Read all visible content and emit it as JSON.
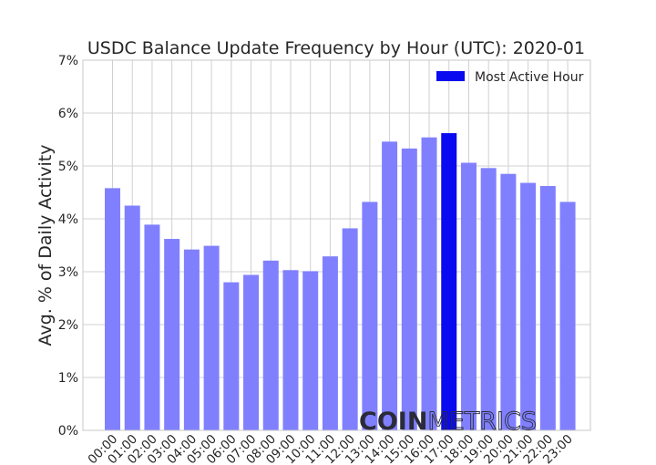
{
  "chart_data": {
    "type": "bar",
    "title": "USDC Balance Update Frequency by Hour (UTC): 2020-01",
    "xlabel": "",
    "ylabel": "Avg. % of Daily Activity",
    "ylim": [
      0,
      7
    ],
    "yticks": [
      "0%",
      "1%",
      "2%",
      "3%",
      "4%",
      "5%",
      "6%",
      "7%"
    ],
    "grid": true,
    "legend": {
      "position": "top-right",
      "entries": [
        {
          "label": "Most Active Hour",
          "color": "#0a0af0"
        }
      ]
    },
    "categories": [
      "00:00",
      "01:00",
      "02:00",
      "03:00",
      "04:00",
      "05:00",
      "06:00",
      "07:00",
      "08:00",
      "09:00",
      "10:00",
      "11:00",
      "12:00",
      "13:00",
      "14:00",
      "15:00",
      "16:00",
      "17:00",
      "18:00",
      "19:00",
      "20:00",
      "21:00",
      "22:00",
      "23:00"
    ],
    "values": [
      4.58,
      4.25,
      3.89,
      3.62,
      3.42,
      3.49,
      2.8,
      2.94,
      3.21,
      3.03,
      3.01,
      3.29,
      3.82,
      4.32,
      5.46,
      5.33,
      5.54,
      5.62,
      5.06,
      4.96,
      4.85,
      4.68,
      4.62,
      4.32
    ],
    "highlight_index": 17,
    "colors": {
      "bar": "#8080ff",
      "highlight": "#0a0af0",
      "grid": "#d0d0d0",
      "axis": "#c8c8c8"
    }
  },
  "watermark": {
    "bold": "COIN",
    "light": "METRICS"
  }
}
